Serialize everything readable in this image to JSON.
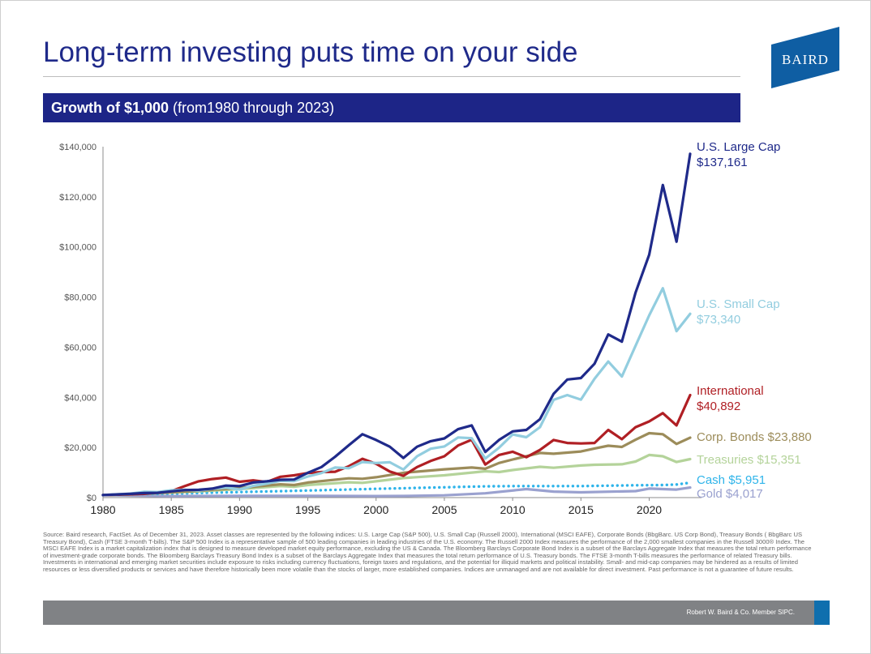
{
  "page": {
    "title": "Long-term investing puts time on your side",
    "logo_text": "BAIRD",
    "subtitle_bold": "Growth of $1,000",
    "subtitle_rest": " (from1980 through 2023)",
    "source_note": "Source: Baird research, FactSet.  As of December 31, 2023. Asset classes are represented by the following indices: U.S. Large Cap (S&P 500), U.S. Small Cap (Russell 2000), International (MSCI EAFE), Corporate Bonds (BbgBarc. US Corp Bond), Treasury Bonds ( BbgBarc US Treasury Bond), Cash (FTSE 3-month T-bills). The S&P 500 Index is a representative sample of 500 leading companies in leading industries of the U.S. economy. The Russell 2000 Index measures the performance of the 2,000 smallest companies in the Russell 3000® Index. The MSCI EAFE Index is a market capitalization index that is designed to measure developed market equity performance, excluding the US & Canada. The Bloomberg Barclays Corporate Bond Index is a subset of the Barclays Aggregate Index that measures the total return performance of investment-grade corporate bonds. The Bloomberg Barclays Treasury Bond Index is a subset of the Barclays Aggregate Index that measures the total return performance of U.S. Treasury bonds. The FTSE 3-month T-bills measures the performance of related Treasury bills. Investments in international and emerging market securities include exposure to risks including currency fluctuations, foreign taxes and regulations, and the potential for illiquid markets and political instability. Small- and mid-cap companies may be hindered as a results of limited resources or less diversified products or services and have therefore historically been more volatile than the stocks of larger, more established companies. Indices are unmanaged and are not available for direct investment. Past performance is not a guarantee of future results.",
    "footer_text": "Robert W. Baird & Co. Member SIPC."
  },
  "colors": {
    "title": "#1f2a8a",
    "bar": "#1d2587",
    "footer": "#808285",
    "accent": "#0f6fae"
  },
  "chart_data": {
    "type": "line",
    "xlim": [
      1980,
      2023
    ],
    "ylim": [
      0,
      140000
    ],
    "x_ticks": [
      {
        "value": 1980,
        "label": "1980"
      },
      {
        "value": 1985,
        "label": "1985"
      },
      {
        "value": 1990,
        "label": "1990"
      },
      {
        "value": 1995,
        "label": "1995"
      },
      {
        "value": 2000,
        "label": "2000"
      },
      {
        "value": 2005,
        "label": "2005"
      },
      {
        "value": 2010,
        "label": "2010"
      },
      {
        "value": 2015,
        "label": "2015"
      },
      {
        "value": 2020,
        "label": "2020"
      }
    ],
    "y_ticks": [
      {
        "value": 0,
        "label": "$0"
      },
      {
        "value": 20000,
        "label": "$20,000"
      },
      {
        "value": 40000,
        "label": "$40,000"
      },
      {
        "value": 60000,
        "label": "$60,000"
      },
      {
        "value": 80000,
        "label": "$80,000"
      },
      {
        "value": 100000,
        "label": "$100,000"
      },
      {
        "value": 120000,
        "label": "$120,000"
      },
      {
        "value": 140000,
        "label": "$140,000"
      }
    ],
    "grid": false,
    "legend": "direct labels at right end of lines",
    "series": [
      {
        "name": "Gold",
        "end_label": "$4,017",
        "color": "#9aa1cf",
        "dashed": false,
        "points": [
          [
            1980,
            1000
          ],
          [
            1982,
            800
          ],
          [
            1985,
            600
          ],
          [
            1990,
            700
          ],
          [
            1995,
            700
          ],
          [
            2000,
            600
          ],
          [
            2002,
            650
          ],
          [
            2005,
            900
          ],
          [
            2008,
            1700
          ],
          [
            2011,
            3400
          ],
          [
            2013,
            2400
          ],
          [
            2015,
            2100
          ],
          [
            2019,
            2600
          ],
          [
            2020,
            3600
          ],
          [
            2022,
            3200
          ],
          [
            2023,
            4017
          ]
        ]
      },
      {
        "name": "Cash",
        "end_label": "$5,951",
        "color": "#2eb4ea",
        "dashed": true,
        "points": [
          [
            1980,
            1000
          ],
          [
            1985,
            1600
          ],
          [
            1990,
            2200
          ],
          [
            1995,
            2800
          ],
          [
            2000,
            3500
          ],
          [
            2005,
            4100
          ],
          [
            2008,
            4500
          ],
          [
            2010,
            4600
          ],
          [
            2015,
            4600
          ],
          [
            2019,
            4900
          ],
          [
            2021,
            5000
          ],
          [
            2022,
            5200
          ],
          [
            2023,
            5951
          ]
        ]
      },
      {
        "name": "Treasuries",
        "end_label": "$15,351",
        "color": "#b4d39a",
        "dashed": false,
        "points": [
          [
            1980,
            1000
          ],
          [
            1982,
            1300
          ],
          [
            1985,
            2000
          ],
          [
            1987,
            2500
          ],
          [
            1990,
            3400
          ],
          [
            1993,
            4600
          ],
          [
            1994,
            4300
          ],
          [
            1995,
            5000
          ],
          [
            1998,
            6100
          ],
          [
            1999,
            5900
          ],
          [
            2000,
            6500
          ],
          [
            2002,
            7800
          ],
          [
            2005,
            8900
          ],
          [
            2008,
            10500
          ],
          [
            2009,
            10200
          ],
          [
            2010,
            11000
          ],
          [
            2012,
            12300
          ],
          [
            2013,
            11900
          ],
          [
            2015,
            12800
          ],
          [
            2016,
            13100
          ],
          [
            2018,
            13300
          ],
          [
            2019,
            14400
          ],
          [
            2020,
            17000
          ],
          [
            2021,
            16500
          ],
          [
            2022,
            14200
          ],
          [
            2023,
            15351
          ]
        ]
      },
      {
        "name": "Corp. Bonds",
        "end_label": "$23,880",
        "color": "#9c8c5a",
        "dashed": false,
        "points": [
          [
            1980,
            1000
          ],
          [
            1982,
            1300
          ],
          [
            1985,
            2100
          ],
          [
            1987,
            2700
          ],
          [
            1990,
            3800
          ],
          [
            1993,
            5300
          ],
          [
            1994,
            5000
          ],
          [
            1995,
            6000
          ],
          [
            1998,
            7700
          ],
          [
            1999,
            7500
          ],
          [
            2000,
            8100
          ],
          [
            2002,
            9900
          ],
          [
            2005,
            11300
          ],
          [
            2007,
            12000
          ],
          [
            2008,
            11500
          ],
          [
            2009,
            13800
          ],
          [
            2010,
            15200
          ],
          [
            2012,
            17800
          ],
          [
            2013,
            17500
          ],
          [
            2015,
            18400
          ],
          [
            2016,
            19600
          ],
          [
            2017,
            20700
          ],
          [
            2018,
            20200
          ],
          [
            2019,
            23100
          ],
          [
            2020,
            25700
          ],
          [
            2021,
            25300
          ],
          [
            2022,
            21400
          ],
          [
            2023,
            23880
          ]
        ]
      },
      {
        "name": "International",
        "end_label": "$40,892",
        "color": "#b01f24",
        "dashed": false,
        "points": [
          [
            1980,
            1000
          ],
          [
            1983,
            1500
          ],
          [
            1985,
            2600
          ],
          [
            1986,
            4600
          ],
          [
            1987,
            6500
          ],
          [
            1988,
            7400
          ],
          [
            1989,
            8000
          ],
          [
            1990,
            6300
          ],
          [
            1991,
            6900
          ],
          [
            1992,
            6200
          ],
          [
            1993,
            8300
          ],
          [
            1994,
            8900
          ],
          [
            1995,
            9800
          ],
          [
            1996,
            10200
          ],
          [
            1997,
            10300
          ],
          [
            1998,
            12500
          ],
          [
            1999,
            15500
          ],
          [
            2000,
            13500
          ],
          [
            2001,
            10400
          ],
          [
            2002,
            8700
          ],
          [
            2003,
            12200
          ],
          [
            2004,
            14600
          ],
          [
            2005,
            16500
          ],
          [
            2006,
            20800
          ],
          [
            2007,
            23100
          ],
          [
            2008,
            13200
          ],
          [
            2009,
            17000
          ],
          [
            2010,
            18300
          ],
          [
            2011,
            16100
          ],
          [
            2012,
            19000
          ],
          [
            2013,
            23000
          ],
          [
            2014,
            21800
          ],
          [
            2015,
            21600
          ],
          [
            2016,
            21800
          ],
          [
            2017,
            27000
          ],
          [
            2018,
            23300
          ],
          [
            2019,
            28100
          ],
          [
            2020,
            30400
          ],
          [
            2021,
            33700
          ],
          [
            2022,
            28800
          ],
          [
            2023,
            40892
          ]
        ]
      },
      {
        "name": "U.S. Small Cap",
        "end_label": "$73,340",
        "color": "#92cddf",
        "dashed": false,
        "points": [
          [
            1980,
            1000
          ],
          [
            1982,
            1600
          ],
          [
            1983,
            2300
          ],
          [
            1984,
            2200
          ],
          [
            1985,
            2900
          ],
          [
            1986,
            3100
          ],
          [
            1987,
            2800
          ],
          [
            1988,
            3500
          ],
          [
            1989,
            4000
          ],
          [
            1990,
            3200
          ],
          [
            1991,
            4700
          ],
          [
            1992,
            5600
          ],
          [
            1993,
            6700
          ],
          [
            1994,
            6600
          ],
          [
            1995,
            8400
          ],
          [
            1996,
            9800
          ],
          [
            1997,
            12000
          ],
          [
            1998,
            11700
          ],
          [
            1999,
            14200
          ],
          [
            2000,
            13800
          ],
          [
            2001,
            14100
          ],
          [
            2002,
            11200
          ],
          [
            2003,
            16500
          ],
          [
            2004,
            19500
          ],
          [
            2005,
            20400
          ],
          [
            2006,
            24000
          ],
          [
            2007,
            23700
          ],
          [
            2008,
            15600
          ],
          [
            2009,
            19900
          ],
          [
            2010,
            25200
          ],
          [
            2011,
            24100
          ],
          [
            2012,
            28100
          ],
          [
            2013,
            39000
          ],
          [
            2014,
            40900
          ],
          [
            2015,
            39100
          ],
          [
            2016,
            47400
          ],
          [
            2017,
            54300
          ],
          [
            2018,
            48300
          ],
          [
            2019,
            60600
          ],
          [
            2020,
            72700
          ],
          [
            2021,
            83500
          ],
          [
            2022,
            66400
          ],
          [
            2023,
            73340
          ]
        ]
      },
      {
        "name": "U.S. Large Cap",
        "end_label": "$137,161",
        "color": "#1f2a8a",
        "dashed": false,
        "points": [
          [
            1980,
            1000
          ],
          [
            1982,
            1500
          ],
          [
            1983,
            1800
          ],
          [
            1984,
            1900
          ],
          [
            1985,
            2500
          ],
          [
            1986,
            3000
          ],
          [
            1987,
            3100
          ],
          [
            1988,
            3600
          ],
          [
            1989,
            4800
          ],
          [
            1990,
            4600
          ],
          [
            1991,
            6000
          ],
          [
            1992,
            6500
          ],
          [
            1993,
            7100
          ],
          [
            1994,
            7200
          ],
          [
            1995,
            9900
          ],
          [
            1996,
            12200
          ],
          [
            1997,
            16300
          ],
          [
            1998,
            20900
          ],
          [
            1999,
            25300
          ],
          [
            2000,
            23000
          ],
          [
            2001,
            20300
          ],
          [
            2002,
            15800
          ],
          [
            2003,
            20300
          ],
          [
            2004,
            22500
          ],
          [
            2005,
            23600
          ],
          [
            2006,
            27300
          ],
          [
            2007,
            28800
          ],
          [
            2008,
            18200
          ],
          [
            2009,
            23000
          ],
          [
            2010,
            26400
          ],
          [
            2011,
            27000
          ],
          [
            2012,
            31300
          ],
          [
            2013,
            41400
          ],
          [
            2014,
            47100
          ],
          [
            2015,
            47700
          ],
          [
            2016,
            53400
          ],
          [
            2017,
            65100
          ],
          [
            2018,
            62200
          ],
          [
            2019,
            81800
          ],
          [
            2020,
            96900
          ],
          [
            2021,
            124700
          ],
          [
            2022,
            102100
          ],
          [
            2023,
            137161
          ]
        ]
      }
    ]
  }
}
